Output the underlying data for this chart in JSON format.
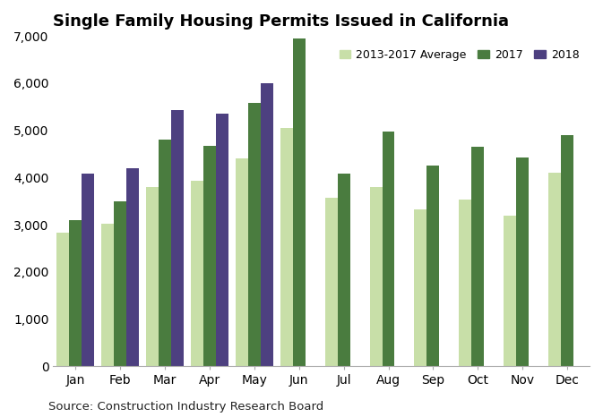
{
  "title": "Single Family Housing Permits Issued in California",
  "source": "Source: Construction Industry Research Board",
  "months": [
    "Jan",
    "Feb",
    "Mar",
    "Apr",
    "May",
    "Jun",
    "Jul",
    "Aug",
    "Sep",
    "Oct",
    "Nov",
    "Dec"
  ],
  "avg_2013_2017": [
    2825,
    3025,
    3800,
    3925,
    4400,
    5050,
    3575,
    3800,
    3325,
    3525,
    3200,
    4100
  ],
  "data_2017": [
    3100,
    3500,
    4800,
    4675,
    5575,
    6950,
    4075,
    4975,
    4250,
    4650,
    4425,
    4900
  ],
  "data_2018": [
    4075,
    4200,
    5425,
    5350,
    6000,
    null,
    null,
    null,
    null,
    null,
    null,
    null
  ],
  "color_avg": "#c8dfa8",
  "color_2017": "#4a7c3f",
  "color_2018": "#4d4080",
  "legend_labels": [
    "2013-2017 Average",
    "2017",
    "2018"
  ],
  "ylim": [
    0,
    7000
  ],
  "yticks": [
    0,
    1000,
    2000,
    3000,
    4000,
    5000,
    6000,
    7000
  ],
  "background_color": "#ffffff",
  "title_fontsize": 13,
  "tick_fontsize": 10,
  "source_fontsize": 9.5,
  "bar_width": 0.28
}
